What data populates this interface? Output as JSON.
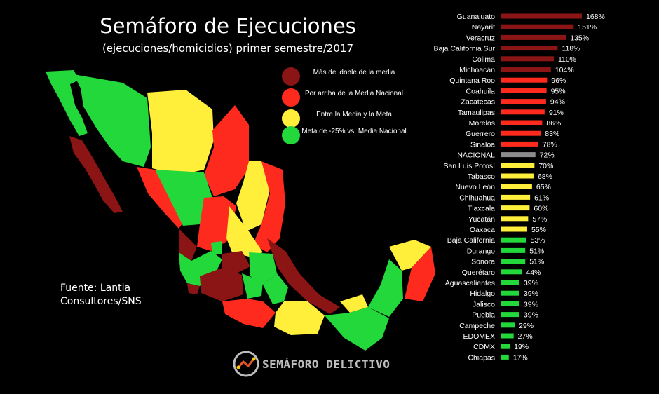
{
  "title": "Semáforo de Ejecuciones",
  "subtitle": "(ejecuciones/homicidios) primer semestre/2017",
  "source": [
    "Fuente: Lantia",
    "Consultores/SNS"
  ],
  "brand": "SEMÁFORO DELICTIVO",
  "colors": {
    "dark_red": "#8b1414",
    "red": "#ff2a1e",
    "yellow": "#ffee3a",
    "green": "#22d83a",
    "gray": "#8c8c8c"
  },
  "legend": [
    {
      "label": "Más del doble de la media",
      "color": "#8b1414"
    },
    {
      "label": "Por arriba de la Media Nacional",
      "color": "#ff2a1e"
    },
    {
      "label": "Entre la Media y la Meta",
      "color": "#ffee3a"
    },
    {
      "label": "Meta de -25% vs. Media Nacional",
      "color": "#22d83a"
    }
  ],
  "chart_data": {
    "type": "bar",
    "orientation": "horizontal",
    "unit": "%",
    "categories": [
      "Guanajuato",
      "Nayarit",
      "Veracruz",
      "Baja California Sur",
      "Colima",
      "Michoacán",
      "Quintana Roo",
      "Coahuila",
      "Zacatecas",
      "Tamaulipas",
      "Morelos",
      "Guerrero",
      "Sinaloa",
      "NACIONAL",
      "San Luis Potosí",
      "Tabasco",
      "Nuevo León",
      "Chihuahua",
      "Tlaxcala",
      "Yucatán",
      "Oaxaca",
      "Baja California",
      "Durango",
      "Sonora",
      "Querétaro",
      "Aguascalientes",
      "Hidalgo",
      "Jalisco",
      "Puebla",
      "Campeche",
      "EDOMEX",
      "CDMX",
      "Chiapas"
    ],
    "values": [
      168,
      151,
      135,
      118,
      110,
      104,
      96,
      95,
      94,
      91,
      86,
      83,
      78,
      72,
      70,
      68,
      65,
      61,
      60,
      57,
      55,
      53,
      51,
      51,
      44,
      39,
      39,
      39,
      39,
      29,
      27,
      19,
      17
    ],
    "categories_class": [
      "dark_red",
      "dark_red",
      "dark_red",
      "dark_red",
      "dark_red",
      "dark_red",
      "red",
      "red",
      "red",
      "red",
      "red",
      "red",
      "red",
      "gray",
      "yellow",
      "yellow",
      "yellow",
      "yellow",
      "yellow",
      "yellow",
      "yellow",
      "green",
      "green",
      "green",
      "green",
      "green",
      "green",
      "green",
      "green",
      "green",
      "green",
      "green",
      "green"
    ],
    "xlim": [
      0,
      168
    ]
  }
}
